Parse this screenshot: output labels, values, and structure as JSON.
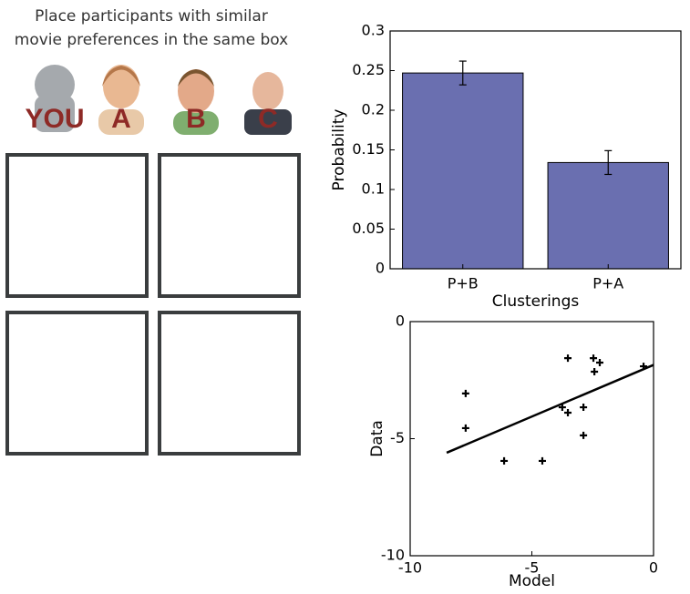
{
  "panel": {
    "instruction": [
      "Place participants with similar",
      "movie preferences in the same box"
    ],
    "labels": [
      "YOU",
      "A",
      "B",
      "C"
    ]
  },
  "chart_data": [
    {
      "type": "bar",
      "categories": [
        "P+B",
        "P+A"
      ],
      "values": [
        0.247,
        0.134
      ],
      "errors": [
        0.015,
        0.015
      ],
      "color": "#6a6fb0",
      "ylim": [
        0,
        0.3
      ],
      "yticks": [
        0,
        0.05,
        0.1,
        0.15,
        0.2,
        0.25,
        0.3
      ],
      "xlabel": "Clusterings",
      "ylabel": "Probability"
    },
    {
      "type": "scatter",
      "x": [
        -7.72,
        -7.72,
        -6.14,
        -4.57,
        -3.52,
        -3.75,
        -3.52,
        -2.88,
        -2.88,
        -2.47,
        -2.21,
        -2.43,
        -0.41
      ],
      "values": [
        -3.07,
        -4.55,
        -5.95,
        -5.95,
        -1.56,
        -3.66,
        -3.89,
        -3.66,
        -4.86,
        -1.56,
        -1.75,
        -2.14,
        -1.91
      ],
      "fit": {
        "x": [
          -8.5,
          0
        ],
        "y": [
          -5.6,
          -1.85
        ]
      },
      "color": "#000000",
      "xlim": [
        -10,
        0
      ],
      "ylim": [
        -10,
        0
      ],
      "xticks": [
        -10,
        -5,
        0
      ],
      "yticks": [
        -10,
        -5,
        0
      ],
      "xlabel": "Model",
      "ylabel": "Data"
    }
  ]
}
